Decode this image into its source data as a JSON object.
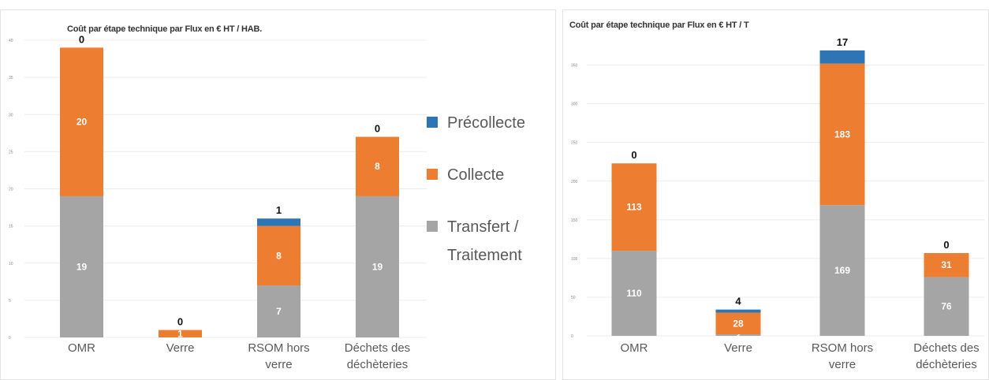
{
  "chart_data": [
    {
      "type": "bar",
      "stacked": true,
      "title": "Coût par étape technique par Flux en € HT / HAB.",
      "categories": [
        "OMR",
        "Verre",
        "RSOM hors verre",
        "Déchets des déchèteries"
      ],
      "series": [
        {
          "name": "Transfert / Traitement",
          "color": "#a5a5a5",
          "values": [
            19,
            0,
            7,
            19
          ]
        },
        {
          "name": "Collecte",
          "color": "#ed7d31",
          "values": [
            20,
            1,
            8,
            8
          ]
        },
        {
          "name": "Précollecte",
          "color": "#2e75b6",
          "values": [
            0,
            0,
            1,
            0
          ]
        }
      ],
      "ylim": [
        0,
        40
      ],
      "yticks": [
        0,
        5,
        10,
        15,
        20,
        25,
        30,
        35,
        40
      ],
      "grid": true,
      "legend": "right"
    },
    {
      "type": "bar",
      "stacked": true,
      "title": "Coût par étape technique par Flux en € HT / T",
      "categories": [
        "OMR",
        "Verre",
        "RSOM hors verre",
        "Déchets des déchèteries"
      ],
      "series": [
        {
          "color": "#a5a5a5",
          "values": [
            110,
            2,
            169,
            76
          ]
        },
        {
          "color": "#ed7d31",
          "values": [
            113,
            28,
            183,
            31
          ]
        },
        {
          "color": "#2e75b6",
          "values": [
            0,
            4,
            17,
            0
          ]
        }
      ],
      "ylim": [
        0,
        370
      ],
      "yticks": [
        0,
        50,
        100,
        150,
        200,
        250,
        300,
        350
      ],
      "grid": true
    }
  ]
}
